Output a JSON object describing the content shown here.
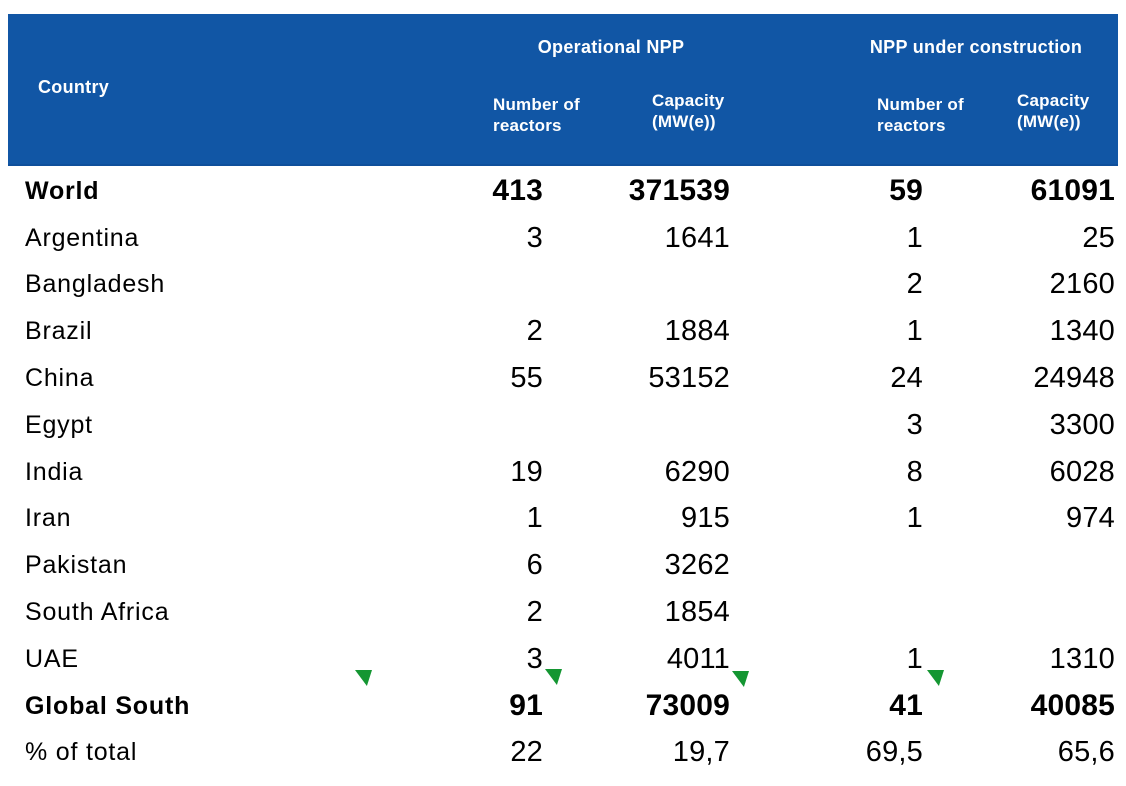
{
  "colors": {
    "header_bg": "#1156A5",
    "header_text": "#ffffff",
    "body_text": "#000000",
    "indicator_green": "#149632"
  },
  "icons": {
    "indicator": "green-corner-flag-triangle"
  },
  "header": {
    "country_label": "Country",
    "groups": [
      {
        "title": "Operational NPP",
        "sub_number": "Number of reactors",
        "sub_capacity": "Capacity (MW(e))"
      },
      {
        "title": "NPP under construction",
        "sub_number": "Number of reactors",
        "sub_capacity": "Capacity (MW(e))"
      }
    ]
  },
  "chart_data": {
    "type": "table",
    "title": "",
    "row_header": "Country",
    "column_groups": [
      {
        "label": "Operational NPP",
        "columns": [
          "Number of reactors",
          "Capacity (MW(e))"
        ]
      },
      {
        "label": "NPP under construction",
        "columns": [
          "Number of reactors",
          "Capacity (MW(e))"
        ]
      }
    ],
    "rows": [
      {
        "country": "World",
        "bold": true,
        "op_reactors": "413",
        "op_capacity": "371539",
        "uc_reactors": "59",
        "uc_capacity": "61091"
      },
      {
        "country": "Argentina",
        "bold": false,
        "op_reactors": "3",
        "op_capacity": "1641",
        "uc_reactors": "1",
        "uc_capacity": "25"
      },
      {
        "country": "Bangladesh",
        "bold": false,
        "op_reactors": "",
        "op_capacity": "",
        "uc_reactors": "2",
        "uc_capacity": "2160"
      },
      {
        "country": "Brazil",
        "bold": false,
        "op_reactors": "2",
        "op_capacity": "1884",
        "uc_reactors": "1",
        "uc_capacity": "1340"
      },
      {
        "country": "China",
        "bold": false,
        "op_reactors": "55",
        "op_capacity": "53152",
        "uc_reactors": "24",
        "uc_capacity": "24948"
      },
      {
        "country": "Egypt",
        "bold": false,
        "op_reactors": "",
        "op_capacity": "",
        "uc_reactors": "3",
        "uc_capacity": "3300"
      },
      {
        "country": "India",
        "bold": false,
        "op_reactors": "19",
        "op_capacity": "6290",
        "uc_reactors": "8",
        "uc_capacity": "6028"
      },
      {
        "country": "Iran",
        "bold": false,
        "op_reactors": "1",
        "op_capacity": "915",
        "uc_reactors": "1",
        "uc_capacity": "974"
      },
      {
        "country": "Pakistan",
        "bold": false,
        "op_reactors": "6",
        "op_capacity": "3262",
        "uc_reactors": "",
        "uc_capacity": ""
      },
      {
        "country": "South Africa",
        "bold": false,
        "op_reactors": "2",
        "op_capacity": "1854",
        "uc_reactors": "",
        "uc_capacity": ""
      },
      {
        "country": "UAE",
        "bold": false,
        "op_reactors": "3",
        "op_capacity": "4011",
        "uc_reactors": "1",
        "uc_capacity": "1310"
      },
      {
        "country": "Global South",
        "bold": true,
        "op_reactors": "91",
        "op_capacity": "73009",
        "uc_reactors": "41",
        "uc_capacity": "40085"
      },
      {
        "country": "% of total",
        "bold": false,
        "op_reactors": "22",
        "op_capacity": "19,7",
        "uc_reactors": "69,5",
        "uc_capacity": "65,6"
      }
    ]
  }
}
